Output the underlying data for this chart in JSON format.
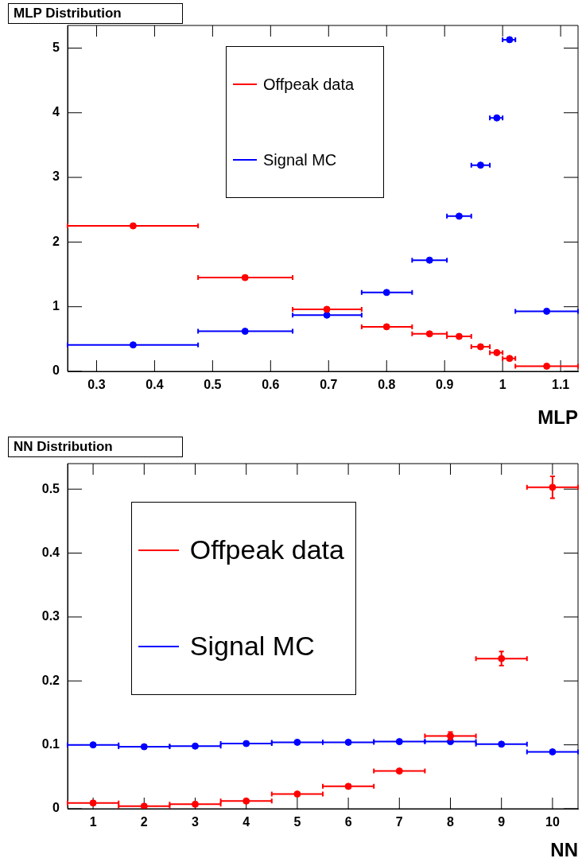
{
  "chart_data": [
    {
      "type": "scatter",
      "title": "MLP Distribution",
      "xlabel": "MLP",
      "xlim": [
        0.25,
        1.13
      ],
      "xticks": [
        0.3,
        0.4,
        0.5,
        0.6,
        0.7,
        0.8,
        0.9,
        1,
        1.1
      ],
      "ylim": [
        0,
        5.35
      ],
      "yticks": [
        0,
        1,
        2,
        3,
        4,
        5
      ],
      "grid": false,
      "legend": "top",
      "marker": "circle",
      "series": [
        {
          "name": "Offpeak data",
          "color": "#ff0000",
          "x": [
            0.363,
            0.556,
            0.697,
            0.8,
            0.874,
            0.925,
            0.962,
            0.99,
            1.012,
            1.076
          ],
          "values": [
            2.25,
            1.45,
            0.96,
            0.69,
            0.58,
            0.54,
            0.38,
            0.29,
            0.2,
            0.08
          ],
          "xerrors": [
            [
              0.25,
              0.475
            ],
            [
              0.475,
              0.638
            ],
            [
              0.638,
              0.757
            ],
            [
              0.757,
              0.844
            ],
            [
              0.844,
              0.904
            ],
            [
              0.904,
              0.946
            ],
            [
              0.946,
              0.978
            ],
            [
              0.978,
              1.0
            ],
            [
              1.0,
              1.022
            ],
            [
              1.022,
              1.13
            ]
          ]
        },
        {
          "name": "Signal MC",
          "color": "#0000ff",
          "x": [
            0.363,
            0.556,
            0.697,
            0.8,
            0.874,
            0.925,
            0.962,
            0.99,
            1.012,
            1.076
          ],
          "values": [
            0.41,
            0.62,
            0.87,
            1.22,
            1.72,
            2.4,
            3.19,
            3.92,
            5.13,
            0.93
          ],
          "xerrors": [
            [
              0.25,
              0.475
            ],
            [
              0.475,
              0.638
            ],
            [
              0.638,
              0.757
            ],
            [
              0.757,
              0.844
            ],
            [
              0.844,
              0.904
            ],
            [
              0.904,
              0.946
            ],
            [
              0.946,
              0.978
            ],
            [
              0.978,
              1.0
            ],
            [
              1.0,
              1.022
            ],
            [
              1.022,
              1.13
            ]
          ]
        }
      ]
    },
    {
      "type": "scatter",
      "title": "NN Distribution",
      "xlabel": "NN",
      "xlim": [
        0.5,
        10.5
      ],
      "xticks": [
        1,
        2,
        3,
        4,
        5,
        6,
        7,
        8,
        9,
        10
      ],
      "ylim": [
        0,
        0.54
      ],
      "yticks": [
        0,
        0.1,
        0.2,
        0.3,
        0.4,
        0.5
      ],
      "grid": false,
      "legend": "top left",
      "marker": "circle",
      "series": [
        {
          "name": "Offpeak data",
          "color": "#ff0000",
          "x": [
            1,
            2,
            3,
            4,
            5,
            6,
            7,
            8,
            9,
            10
          ],
          "values": [
            0.009,
            0.004,
            0.007,
            0.012,
            0.023,
            0.035,
            0.059,
            0.114,
            0.235,
            0.503
          ],
          "xerrors": [
            0.5,
            0.5,
            0.5,
            0.5,
            0.5,
            0.5,
            0.5,
            0.5,
            0.5,
            0.5
          ],
          "errors": [
            null,
            null,
            null,
            null,
            null,
            null,
            null,
            0.006,
            0.011,
            0.017
          ]
        },
        {
          "name": "Signal MC",
          "color": "#0000ff",
          "x": [
            1,
            2,
            3,
            4,
            5,
            6,
            7,
            8,
            9,
            10
          ],
          "values": [
            0.1,
            0.097,
            0.098,
            0.102,
            0.104,
            0.104,
            0.105,
            0.105,
            0.101,
            0.089
          ],
          "xerrors": [
            0.5,
            0.5,
            0.5,
            0.5,
            0.5,
            0.5,
            0.5,
            0.5,
            0.5,
            0.5
          ]
        }
      ]
    }
  ]
}
